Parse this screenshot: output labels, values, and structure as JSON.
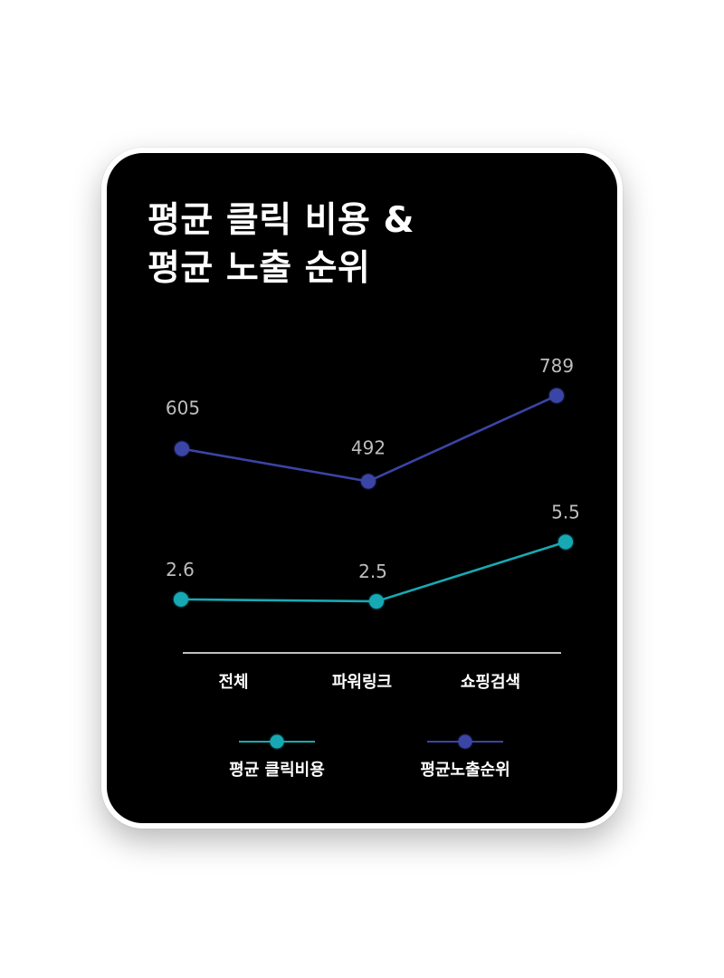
{
  "chart_data": {
    "type": "line",
    "title": "평균 클릭 비용 & 평균 노출 순위",
    "title_lines": [
      "평균 클릭 비용 &",
      "평균 노출 순위"
    ],
    "categories": [
      "전체",
      "파워링크",
      "쇼핑검색"
    ],
    "series": [
      {
        "name": "평균 클릭비용",
        "values": [
          2.6,
          2.5,
          5.5
        ],
        "color": "#19a9b4"
      },
      {
        "name": "평균노출순위",
        "values": [
          605,
          492,
          789
        ],
        "color": "#3b44a6"
      }
    ],
    "xlabel": "",
    "ylabel": "",
    "grid": false,
    "legend": "bottom"
  },
  "colors": {
    "background": "#000000",
    "card_border": "#ffffff",
    "value_label": "#bdbdbd",
    "axis": "#ffffff"
  }
}
